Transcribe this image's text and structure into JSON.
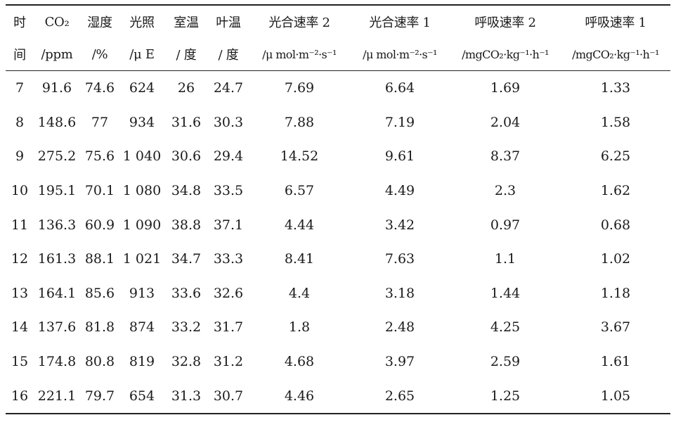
{
  "table": {
    "header_row1": [
      "时",
      "CO₂",
      "湿度",
      "光照",
      "室温",
      "叶温",
      "光合速率 2",
      "光合速率 1",
      "呼吸速率 2",
      "呼吸速率 1"
    ],
    "header_row2": [
      "间",
      "/ppm",
      "/%",
      "/μ E",
      "/ 度",
      "/ 度",
      "/μ mol·m⁻²·s⁻¹",
      "/μ mol·m⁻²·s⁻¹",
      "/mgCO₂·kg⁻¹·h⁻¹",
      "/mgCO₂·kg⁻¹·h⁻¹"
    ],
    "rows": [
      [
        "7",
        "91.6",
        "74.6",
        "624",
        "26",
        "24.7",
        "7.69",
        "6.64",
        "1.69",
        "1.33"
      ],
      [
        "8",
        "148.6",
        "77",
        "934",
        "31.6",
        "30.3",
        "7.88",
        "7.19",
        "2.04",
        "1.58"
      ],
      [
        "9",
        "275.2",
        "75.6",
        "1 040",
        "30.6",
        "29.4",
        "14.52",
        "9.61",
        "8.37",
        "6.25"
      ],
      [
        "10",
        "195.1",
        "70.1",
        "1 080",
        "34.8",
        "33.5",
        "6.57",
        "4.49",
        "2.3",
        "1.62"
      ],
      [
        "11",
        "136.3",
        "60.9",
        "1 090",
        "38.8",
        "37.1",
        "4.44",
        "3.42",
        "0.97",
        "0.68"
      ],
      [
        "12",
        "161.3",
        "88.1",
        "1 021",
        "34.7",
        "33.3",
        "8.41",
        "7.63",
        "1.1",
        "1.02"
      ],
      [
        "13",
        "164.1",
        "85.6",
        "913",
        "33.6",
        "32.6",
        "4.4",
        "3.18",
        "1.44",
        "1.18"
      ],
      [
        "14",
        "137.6",
        "81.8",
        "874",
        "33.2",
        "31.7",
        "1.8",
        "2.48",
        "4.25",
        "3.67"
      ],
      [
        "15",
        "174.8",
        "80.8",
        "819",
        "32.8",
        "31.2",
        "4.68",
        "3.97",
        "2.59",
        "1.61"
      ],
      [
        "16",
        "221.1",
        "79.7",
        "654",
        "31.3",
        "30.7",
        "4.46",
        "2.65",
        "1.25",
        "1.05"
      ]
    ]
  }
}
